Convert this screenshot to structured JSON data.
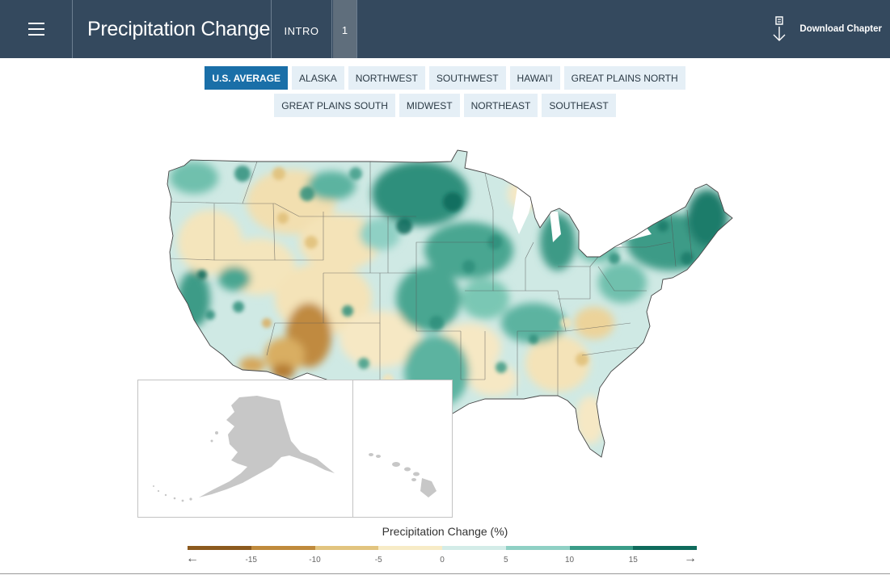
{
  "header": {
    "title": "Precipitation Change",
    "nav_intro": "INTRO",
    "nav_page": "1",
    "download_label": "Download Chapter"
  },
  "tabs_row1": [
    "U.S. AVERAGE",
    "ALASKA",
    "NORTHWEST",
    "SOUTHWEST",
    "HAWAI'I",
    "GREAT PLAINS NORTH"
  ],
  "tabs_row2": [
    "GREAT PLAINS SOUTH",
    "MIDWEST",
    "NORTHEAST",
    "SOUTHEAST"
  ],
  "active_tab": "U.S. AVERAGE",
  "legend": {
    "title": "Precipitation Change (%)",
    "ticks": [
      "-15",
      "-10",
      "-5",
      "0",
      "5",
      "10",
      "15"
    ],
    "colors": [
      "#8c5a1e",
      "#bf8a3c",
      "#e2c47f",
      "#f7ebc6",
      "#d3ece8",
      "#8fd0c4",
      "#3a9c88",
      "#0f6b5c"
    ],
    "arrow_left": "←",
    "arrow_right": "→"
  },
  "icons": {
    "menu": "hamburger-icon",
    "download": "download-icon"
  }
}
